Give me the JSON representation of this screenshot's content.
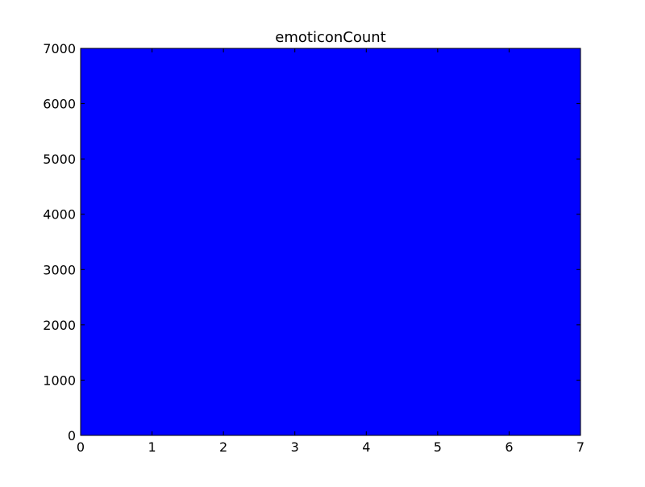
{
  "chart_data": {
    "type": "area",
    "title": "emoticonCount",
    "xlabel": "",
    "ylabel": "",
    "xlim": [
      0,
      7
    ],
    "ylim": [
      0,
      7000
    ],
    "x_ticks": [
      0,
      1,
      2,
      3,
      4,
      5,
      6,
      7
    ],
    "y_ticks": [
      0,
      1000,
      2000,
      3000,
      4000,
      5000,
      6000,
      7000
    ],
    "grid": false,
    "series": [
      {
        "x": [
          0,
          7
        ],
        "y": [
          7000,
          7000
        ],
        "color": "#0000ff"
      }
    ]
  }
}
